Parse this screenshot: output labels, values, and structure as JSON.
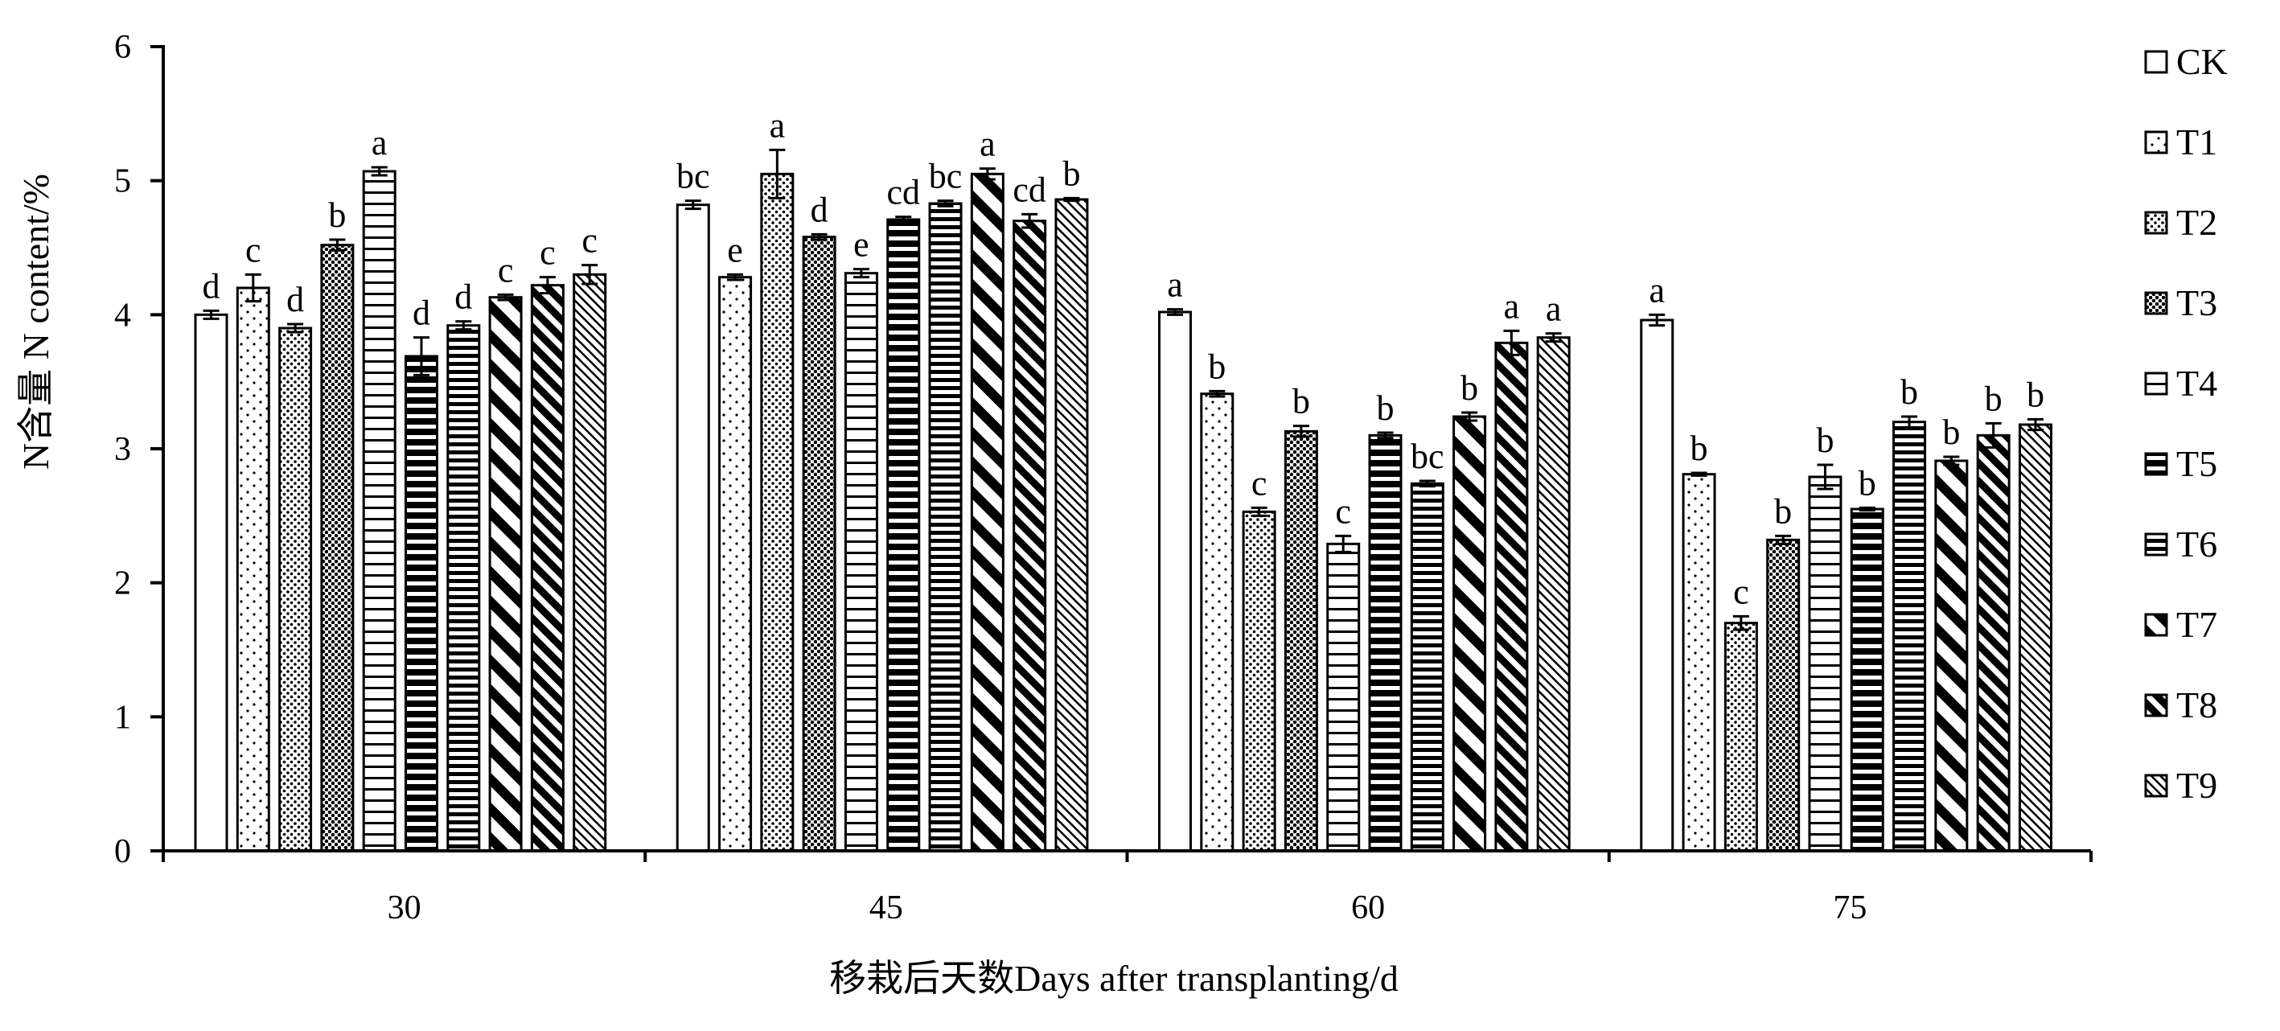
{
  "chart_data": {
    "type": "bar",
    "xlabel": "移栽后天数Days after transplanting/d",
    "ylabel": "N含量 N content/%",
    "ylim": [
      0,
      6
    ],
    "yticks": [
      "0",
      "1",
      "2",
      "3",
      "4",
      "5",
      "6"
    ],
    "grid": false,
    "legend_position": "right",
    "categories": [
      "30",
      "45",
      "60",
      "75"
    ],
    "series": [
      {
        "name": "CK",
        "pattern": "plain",
        "values": [
          4.0,
          4.82,
          4.02,
          3.96
        ],
        "errors": [
          0.03,
          0.03,
          0.02,
          0.04
        ],
        "labels": [
          "d",
          "bc",
          "a",
          "a"
        ]
      },
      {
        "name": "T1",
        "pattern": "sparse-dots",
        "values": [
          4.2,
          4.28,
          3.41,
          2.81
        ],
        "errors": [
          0.1,
          0.02,
          0.02,
          0.01
        ],
        "labels": [
          "c",
          "e",
          "b",
          "b"
        ]
      },
      {
        "name": "T2",
        "pattern": "dense-dots",
        "values": [
          3.9,
          5.05,
          2.53,
          1.7
        ],
        "errors": [
          0.03,
          0.18,
          0.03,
          0.05
        ],
        "labels": [
          "d",
          "a",
          "c",
          "c"
        ]
      },
      {
        "name": "T3",
        "pattern": "dots-heavy",
        "values": [
          4.52,
          4.58,
          3.13,
          2.32
        ],
        "errors": [
          0.04,
          0.02,
          0.04,
          0.03
        ],
        "labels": [
          "b",
          "d",
          "b",
          "b"
        ]
      },
      {
        "name": "T4",
        "pattern": "h-lines-wide",
        "values": [
          5.07,
          4.31,
          2.29,
          2.79
        ],
        "errors": [
          0.03,
          0.03,
          0.06,
          0.09
        ],
        "labels": [
          "a",
          "e",
          "c",
          "b"
        ]
      },
      {
        "name": "T5",
        "pattern": "h-lines-thick",
        "values": [
          3.69,
          4.71,
          3.1,
          2.55
        ],
        "errors": [
          0.14,
          0.02,
          0.02,
          0.01
        ],
        "labels": [
          "d",
          "cd",
          "b",
          "b"
        ]
      },
      {
        "name": "T6",
        "pattern": "h-lines-dense",
        "values": [
          3.92,
          4.83,
          2.74,
          3.2
        ],
        "errors": [
          0.03,
          0.02,
          0.02,
          0.04
        ],
        "labels": [
          "d",
          "bc",
          "bc",
          "b"
        ]
      },
      {
        "name": "T7",
        "pattern": "diag-wide",
        "values": [
          4.13,
          5.05,
          3.24,
          2.91
        ],
        "errors": [
          0.02,
          0.04,
          0.03,
          0.03
        ],
        "labels": [
          "c",
          "a",
          "b",
          "b"
        ]
      },
      {
        "name": "T8",
        "pattern": "diag-dense",
        "values": [
          4.22,
          4.7,
          3.79,
          3.1
        ],
        "errors": [
          0.06,
          0.05,
          0.09,
          0.09
        ],
        "labels": [
          "c",
          "cd",
          "a",
          "b"
        ]
      },
      {
        "name": "T9",
        "pattern": "diag-fine",
        "values": [
          4.3,
          4.86,
          3.83,
          3.18
        ],
        "errors": [
          0.07,
          0.01,
          0.03,
          0.04
        ],
        "labels": [
          "c",
          "b",
          "a",
          "b"
        ]
      }
    ]
  }
}
